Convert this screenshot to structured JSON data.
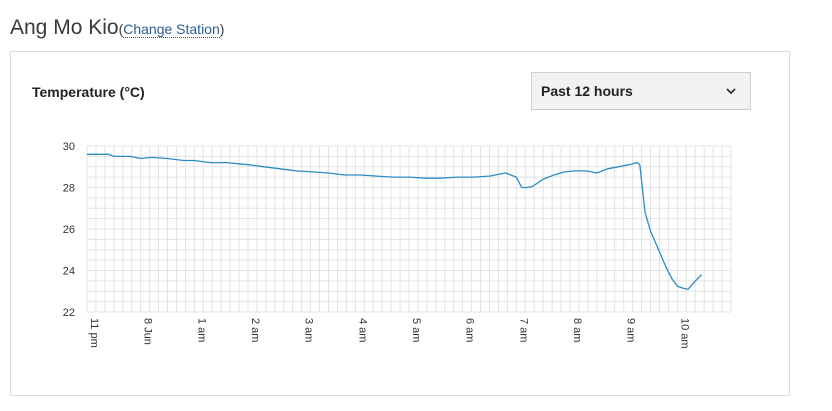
{
  "header": {
    "station_name": "Ang Mo Kio",
    "open_paren": "(",
    "change_label": "Change Station",
    "close_paren": ")"
  },
  "panel": {
    "range_select": {
      "selected": "Past 12 hours",
      "icon": "chevron-down-icon"
    }
  },
  "colors": {
    "line": "#2b8cc4",
    "grid": "#e3e3e3",
    "link": "#2b5d8c"
  },
  "chart_data": {
    "type": "line",
    "title": "Temperature (°C)",
    "ylim": [
      22,
      30
    ],
    "yticks": [
      "22",
      "24",
      "26",
      "28",
      "30"
    ],
    "grid": true,
    "x_axis": {
      "start_hour": 23,
      "end_hour": 11,
      "tick_labels": [
        "11 pm",
        "8 Jun",
        "1 am",
        "2 am",
        "3 am",
        "4 am",
        "5 am",
        "6 am",
        "7 am",
        "8 am",
        "9 am",
        "10 am"
      ],
      "tick_hours": [
        23,
        24,
        25,
        26,
        27,
        28,
        29,
        30,
        31,
        32,
        33,
        34
      ]
    },
    "series": [
      {
        "name": "",
        "x": [
          23.0,
          23.4,
          23.5,
          23.8,
          24.0,
          24.2,
          24.5,
          24.8,
          25.0,
          25.3,
          25.6,
          26.0,
          26.3,
          26.6,
          26.9,
          27.2,
          27.5,
          27.8,
          28.1,
          28.4,
          28.7,
          29.0,
          29.3,
          29.6,
          29.9,
          30.2,
          30.5,
          30.8,
          31.0,
          31.1,
          31.2,
          31.3,
          31.5,
          31.7,
          31.9,
          32.1,
          32.3,
          32.5,
          32.7,
          32.9,
          33.1,
          33.25,
          33.3,
          33.4,
          33.5,
          33.6,
          33.7,
          33.8,
          33.9,
          34.0,
          34.1,
          34.2,
          34.3,
          34.45
        ],
        "y": [
          29.6,
          29.6,
          29.5,
          29.5,
          29.4,
          29.45,
          29.4,
          29.3,
          29.3,
          29.2,
          29.2,
          29.1,
          29.0,
          28.9,
          28.8,
          28.75,
          28.7,
          28.6,
          28.6,
          28.55,
          28.5,
          28.5,
          28.45,
          28.45,
          28.5,
          28.5,
          28.55,
          28.7,
          28.5,
          28.0,
          28.0,
          28.05,
          28.4,
          28.6,
          28.75,
          28.8,
          28.8,
          28.7,
          28.9,
          29.0,
          29.1,
          29.2,
          29.1,
          26.8,
          25.9,
          25.3,
          24.7,
          24.1,
          23.6,
          23.25,
          23.15,
          23.1,
          23.4,
          23.8
        ]
      }
    ]
  }
}
